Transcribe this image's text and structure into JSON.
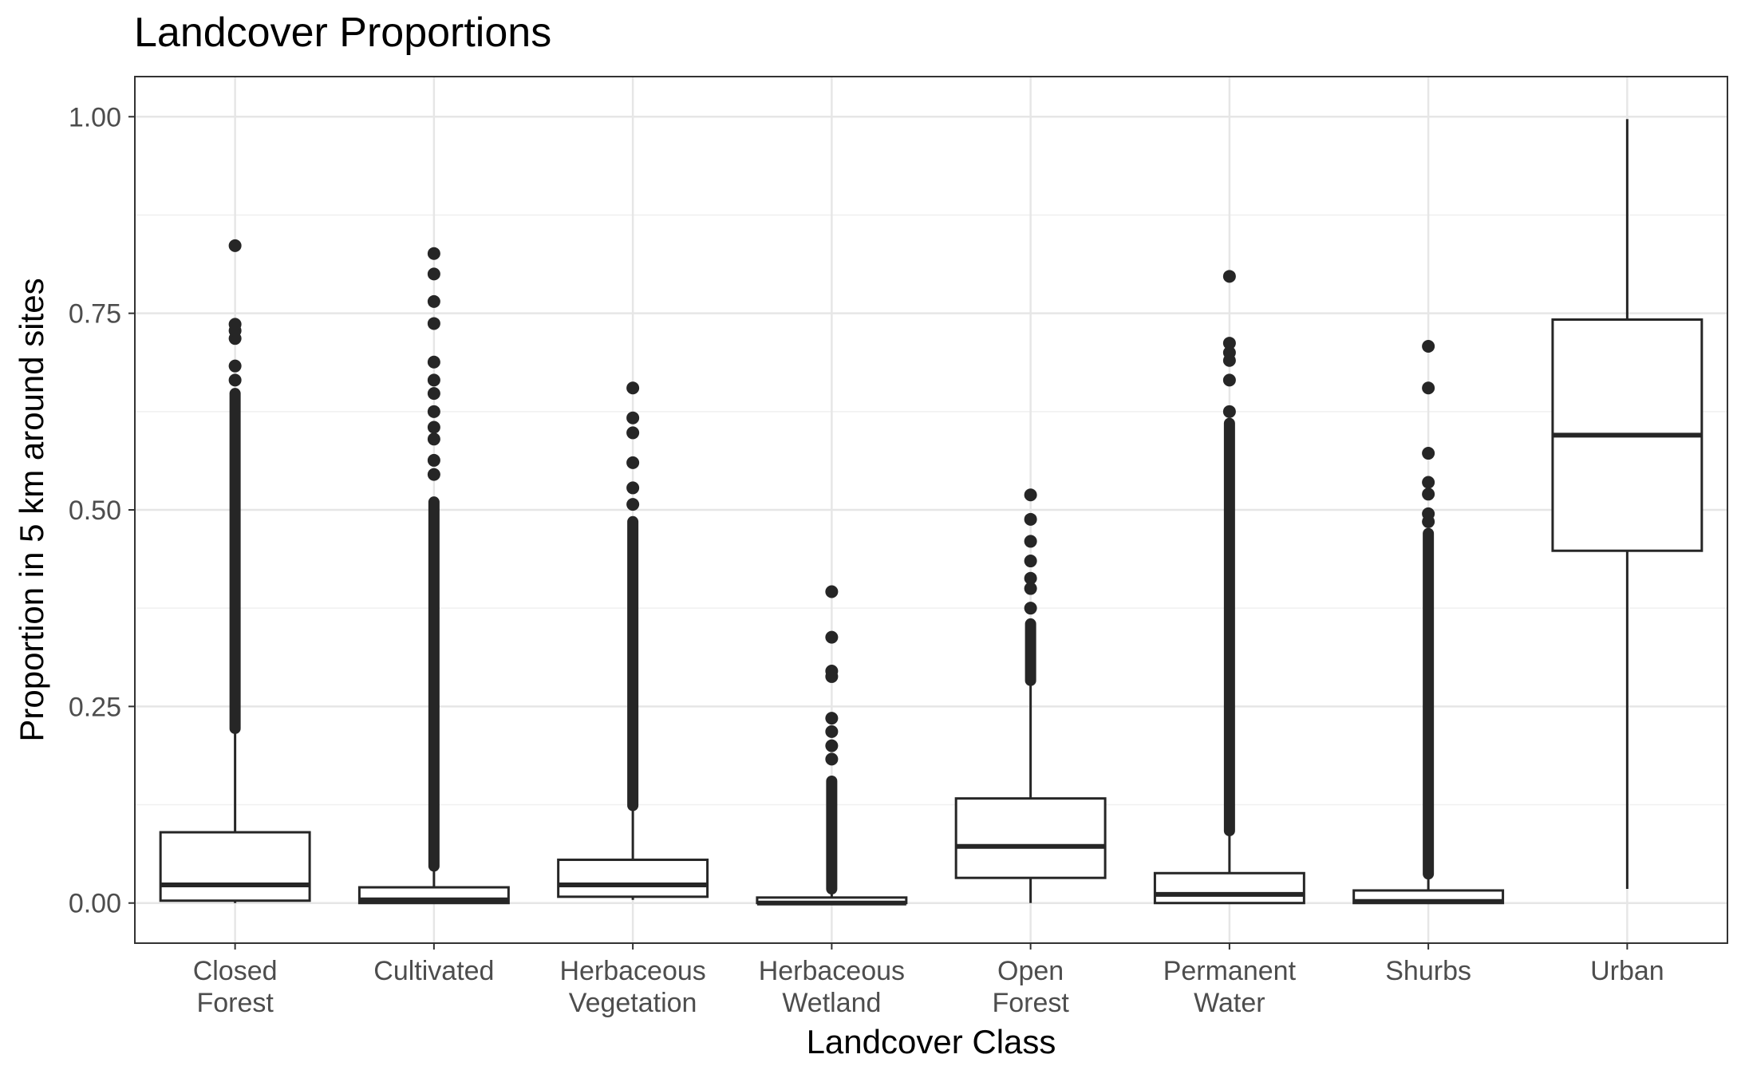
{
  "chart_data": {
    "type": "boxplot",
    "title": "Landcover Proportions",
    "xlabel": "Landcover Class",
    "ylabel": "Proportion in 5 km around sites",
    "ylim": [
      -0.05,
      1.05
    ],
    "yticks": [
      0.0,
      0.25,
      0.5,
      0.75,
      1.0
    ],
    "ytick_labels": [
      "0.00",
      "0.25",
      "0.50",
      "0.75",
      "1.00"
    ],
    "grid": true,
    "categories": [
      [
        "Closed",
        "Forest"
      ],
      [
        "Cultivated"
      ],
      [
        "Herbaceous",
        "Vegetation"
      ],
      [
        "Herbaceous",
        "Wetland"
      ],
      [
        "Open",
        "Forest"
      ],
      [
        "Permanent",
        "Water"
      ],
      [
        "Shurbs"
      ],
      [
        "Urban"
      ]
    ],
    "boxes": [
      {
        "whisker_low": 0.0,
        "q1": 0.003,
        "median": 0.023,
        "q3": 0.09,
        "whisker_high": 0.222,
        "outlier_span": [
          0.222,
          0.648
        ],
        "outliers": [
          0.665,
          0.683,
          0.718,
          0.728,
          0.736,
          0.836
        ]
      },
      {
        "whisker_low": 0.0,
        "q1": 0.0,
        "median": 0.004,
        "q3": 0.02,
        "whisker_high": 0.047,
        "outlier_span": [
          0.047,
          0.51
        ],
        "outliers": [
          0.545,
          0.563,
          0.59,
          0.605,
          0.625,
          0.648,
          0.665,
          0.688,
          0.737,
          0.765,
          0.8,
          0.826
        ]
      },
      {
        "whisker_low": 0.004,
        "q1": 0.008,
        "median": 0.023,
        "q3": 0.055,
        "whisker_high": 0.124,
        "outlier_span": [
          0.124,
          0.485
        ],
        "outliers": [
          0.507,
          0.528,
          0.56,
          0.598,
          0.617,
          0.655
        ]
      },
      {
        "whisker_low": 0.0,
        "q1": 0.0,
        "median": 0.0,
        "q3": 0.007,
        "whisker_high": 0.018,
        "outlier_span": [
          0.018,
          0.155
        ],
        "outliers": [
          0.183,
          0.2,
          0.218,
          0.235,
          0.288,
          0.295,
          0.338,
          0.396
        ]
      },
      {
        "whisker_low": 0.0,
        "q1": 0.032,
        "median": 0.072,
        "q3": 0.133,
        "whisker_high": 0.283,
        "outlier_span": [
          0.283,
          0.355
        ],
        "outliers": [
          0.375,
          0.4,
          0.413,
          0.435,
          0.46,
          0.488,
          0.519
        ]
      },
      {
        "whisker_low": 0.0,
        "q1": 0.0,
        "median": 0.011,
        "q3": 0.038,
        "whisker_high": 0.092,
        "outlier_span": [
          0.092,
          0.61
        ],
        "outliers": [
          0.625,
          0.665,
          0.69,
          0.7,
          0.712,
          0.797
        ]
      },
      {
        "whisker_low": 0.0,
        "q1": 0.0,
        "median": 0.002,
        "q3": 0.016,
        "whisker_high": 0.037,
        "outlier_span": [
          0.037,
          0.47
        ],
        "outliers": [
          0.485,
          0.495,
          0.52,
          0.535,
          0.572,
          0.655,
          0.708
        ]
      },
      {
        "whisker_low": 0.018,
        "q1": 0.448,
        "median": 0.595,
        "q3": 0.742,
        "whisker_high": 0.997,
        "outlier_span": null,
        "outliers": []
      }
    ]
  }
}
